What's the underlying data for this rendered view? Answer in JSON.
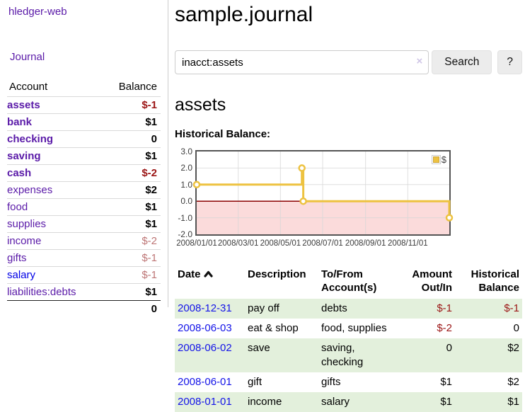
{
  "sidebar": {
    "app_title": "hledger-web",
    "nav": {
      "journal": "Journal"
    },
    "headers": {
      "account": "Account",
      "balance": "Balance"
    },
    "accounts": [
      {
        "name": "assets",
        "balance": "$-1"
      },
      {
        "name": "bank",
        "balance": "$1"
      },
      {
        "name": "checking",
        "balance": "0"
      },
      {
        "name": "saving",
        "balance": "$1"
      },
      {
        "name": "cash",
        "balance": "$-2"
      },
      {
        "name": "expenses",
        "balance": "$2"
      },
      {
        "name": "food",
        "balance": "$1"
      },
      {
        "name": "supplies",
        "balance": "$1"
      },
      {
        "name": "income",
        "balance": "$-2"
      },
      {
        "name": "gifts",
        "balance": "$-1"
      },
      {
        "name": "salary",
        "balance": "$-1"
      },
      {
        "name": "liabilities:debts",
        "balance": "$1"
      }
    ],
    "total": "0"
  },
  "main": {
    "title": "sample.journal",
    "search": {
      "value": "inacct:assets",
      "clear": "×",
      "search_button": "Search",
      "help_button": "?"
    },
    "heading": "assets",
    "chart_title": "Historical Balance:"
  },
  "chart_data": {
    "type": "line",
    "step": true,
    "title": "Historical Balance:",
    "series": [
      {
        "name": "$",
        "color": "#edc240",
        "points": [
          [
            "2008/01/01",
            1
          ],
          [
            "2008/06/01",
            2
          ],
          [
            "2008/06/03",
            0
          ],
          [
            "2008/12/31",
            -1
          ]
        ]
      }
    ],
    "x_ticks": [
      "2008/01/01",
      "2008/03/01",
      "2008/05/01",
      "2008/07/01",
      "2008/09/01",
      "2008/11/01"
    ],
    "y_ticks": [
      "3.0",
      "2.0",
      "1.0",
      "0.0",
      "-1.0",
      "-2.0"
    ],
    "xlim": [
      "2008/01/01",
      "2008/12/31"
    ],
    "ylim": [
      -2,
      3
    ],
    "grid": true,
    "legend_position": "top-right",
    "colors": {
      "line": "#edc240",
      "point_fill": "#ffffff",
      "negative_region": "#fbdbdb",
      "zero_line": "#8b0000",
      "gridline": "#d8d8d8",
      "border": "#545454"
    }
  },
  "register": {
    "headers": {
      "date": "Date",
      "description": "Description",
      "accounts": "To/From Account(s)",
      "amount": "Amount Out/In",
      "balance": "Historical Balance"
    },
    "rows": [
      {
        "date": "2008-12-31",
        "description": "pay off",
        "accounts": "debts",
        "amount": "$-1",
        "balance": "$-1"
      },
      {
        "date": "2008-06-03",
        "description": "eat & shop",
        "accounts": "food, supplies",
        "amount": "$-2",
        "balance": "0"
      },
      {
        "date": "2008-06-02",
        "description": "save",
        "accounts": "saving, checking",
        "amount": "0",
        "balance": "$2"
      },
      {
        "date": "2008-06-01",
        "description": "gift",
        "accounts": "gifts",
        "amount": "$1",
        "balance": "$2"
      },
      {
        "date": "2008-01-01",
        "description": "income",
        "accounts": "salary",
        "amount": "$1",
        "balance": "$1"
      }
    ]
  }
}
